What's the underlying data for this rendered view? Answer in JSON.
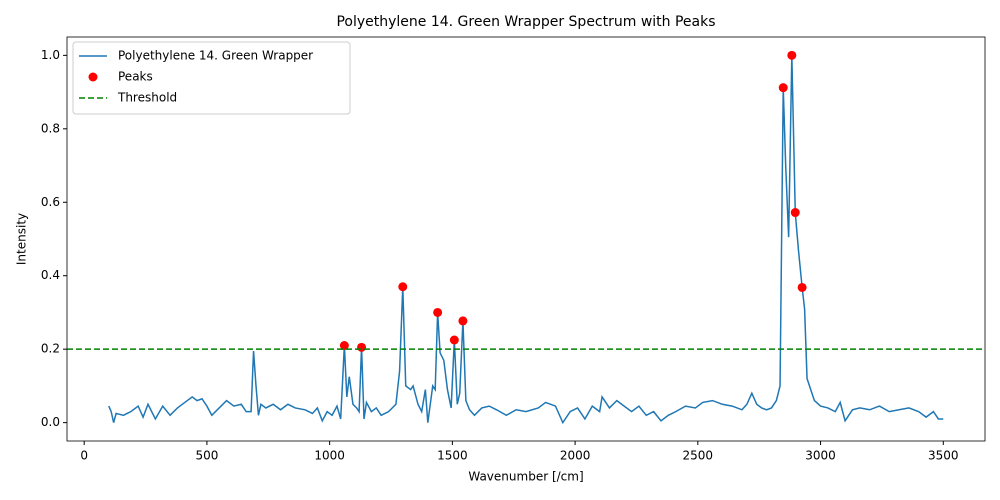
{
  "chart_data": {
    "type": "line",
    "title": "Polyethylene 14. Green Wrapper Spectrum with Peaks",
    "x_label": "Wavenumber [/cm]",
    "y_label": "Intensity",
    "xlim": [
      -70,
      3670
    ],
    "ylim": [
      -0.05,
      1.05
    ],
    "xticks": [
      0,
      500,
      1000,
      1500,
      2000,
      2500,
      3000,
      3500
    ],
    "yticks": [
      {
        "value": 0,
        "label": "0.0"
      },
      {
        "value": 0.2,
        "label": "0.2"
      },
      {
        "value": 0.4,
        "label": "0.4"
      },
      {
        "value": 0.6,
        "label": "0.6"
      },
      {
        "value": 0.8,
        "label": "0.8"
      },
      {
        "value": 1,
        "label": "1.0"
      }
    ],
    "legend": "upper left",
    "series": [
      {
        "name": "Polyethylene 14. Green Wrapper",
        "color": "#1f77b4",
        "kind": "line",
        "x": [
          100,
          110,
          120,
          130,
          160,
          190,
          220,
          240,
          260,
          290,
          320,
          350,
          380,
          410,
          440,
          460,
          480,
          500,
          520,
          550,
          580,
          610,
          640,
          660,
          680,
          690,
          700,
          710,
          720,
          740,
          770,
          800,
          830,
          860,
          900,
          930,
          950,
          970,
          990,
          1010,
          1030,
          1045,
          1060,
          1070,
          1080,
          1095,
          1110,
          1120,
          1130,
          1140,
          1150,
          1170,
          1190,
          1210,
          1240,
          1270,
          1285,
          1298,
          1310,
          1330,
          1340,
          1360,
          1375,
          1390,
          1400,
          1420,
          1430,
          1440,
          1450,
          1465,
          1480,
          1495,
          1508,
          1520,
          1530,
          1543,
          1555,
          1570,
          1590,
          1620,
          1650,
          1680,
          1720,
          1760,
          1800,
          1850,
          1880,
          1920,
          1950,
          1980,
          2010,
          2040,
          2070,
          2100,
          2110,
          2140,
          2170,
          2200,
          2230,
          2260,
          2290,
          2320,
          2350,
          2380,
          2410,
          2450,
          2490,
          2520,
          2560,
          2600,
          2640,
          2680,
          2700,
          2720,
          2740,
          2760,
          2780,
          2800,
          2820,
          2835,
          2848,
          2858,
          2870,
          2883,
          2897,
          2910,
          2925,
          2935,
          2945,
          2960,
          2975,
          3000,
          3030,
          3060,
          3080,
          3100,
          3130,
          3160,
          3200,
          3240,
          3280,
          3320,
          3360,
          3400,
          3430,
          3460,
          3480,
          3500
        ],
        "values": [
          0.045,
          0.03,
          0.0,
          0.025,
          0.02,
          0.03,
          0.045,
          0.015,
          0.05,
          0.01,
          0.045,
          0.02,
          0.04,
          0.055,
          0.07,
          0.06,
          0.065,
          0.045,
          0.02,
          0.04,
          0.06,
          0.045,
          0.05,
          0.03,
          0.03,
          0.195,
          0.1,
          0.02,
          0.05,
          0.04,
          0.05,
          0.035,
          0.05,
          0.04,
          0.035,
          0.025,
          0.04,
          0.005,
          0.03,
          0.02,
          0.045,
          0.01,
          0.21,
          0.07,
          0.125,
          0.05,
          0.04,
          0.03,
          0.205,
          0.01,
          0.055,
          0.03,
          0.04,
          0.02,
          0.03,
          0.05,
          0.14,
          0.37,
          0.1,
          0.09,
          0.1,
          0.05,
          0.03,
          0.09,
          0.0,
          0.1,
          0.09,
          0.3,
          0.19,
          0.17,
          0.09,
          0.04,
          0.225,
          0.05,
          0.08,
          0.277,
          0.06,
          0.035,
          0.02,
          0.04,
          0.045,
          0.035,
          0.02,
          0.035,
          0.03,
          0.04,
          0.055,
          0.045,
          0.0,
          0.03,
          0.04,
          0.01,
          0.045,
          0.03,
          0.07,
          0.04,
          0.06,
          0.045,
          0.03,
          0.045,
          0.02,
          0.03,
          0.005,
          0.02,
          0.03,
          0.045,
          0.04,
          0.055,
          0.06,
          0.05,
          0.045,
          0.035,
          0.05,
          0.08,
          0.05,
          0.04,
          0.035,
          0.04,
          0.06,
          0.1,
          0.912,
          0.7,
          0.505,
          1.0,
          0.572,
          0.47,
          0.368,
          0.31,
          0.12,
          0.09,
          0.06,
          0.045,
          0.04,
          0.03,
          0.055,
          0.005,
          0.035,
          0.04,
          0.035,
          0.045,
          0.03,
          0.035,
          0.04,
          0.03,
          0.015,
          0.03,
          0.01,
          0.01
        ]
      },
      {
        "name": "Peaks",
        "color": "#ff0000",
        "kind": "scatter",
        "x": [
          1060,
          1130,
          1298,
          1440,
          1508,
          1543,
          2848,
          2883,
          2897,
          2925
        ],
        "values": [
          0.21,
          0.205,
          0.37,
          0.3,
          0.225,
          0.277,
          0.912,
          1.0,
          0.572,
          0.368
        ]
      }
    ],
    "threshold": {
      "name": "Threshold",
      "value": 0.2,
      "color": "#008000"
    }
  }
}
